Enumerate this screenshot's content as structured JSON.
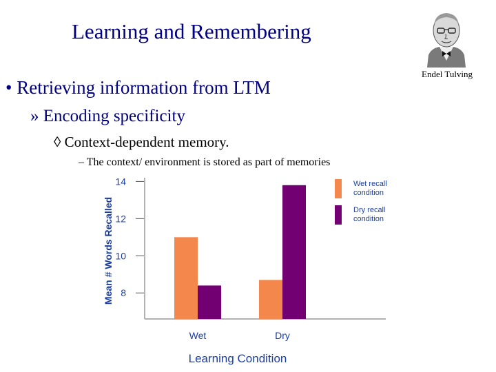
{
  "slide": {
    "title": "Learning and Remembering",
    "bullet1_marker": "•",
    "bullet1": "Retrieving information from LTM",
    "bullet2_marker": "»",
    "bullet2": "Encoding specificity",
    "bullet3_marker": "◊",
    "bullet3": "Context-dependent memory.",
    "bullet4_marker": "–",
    "bullet4": "The context/ environment is stored as part of memories",
    "portrait_caption": "Endel Tulving"
  },
  "chart_data": {
    "type": "bar",
    "categories": [
      "Wet",
      "Dry"
    ],
    "series": [
      {
        "name": "Wet recall condition",
        "values": [
          11.0,
          8.7
        ],
        "color": "#f4874b"
      },
      {
        "name": "Dry recall condition",
        "values": [
          8.4,
          13.8
        ],
        "color": "#730073"
      }
    ],
    "xlabel": "Learning Condition",
    "ylabel": "Mean # Words Recalled",
    "yticks": [
      8,
      10,
      12,
      14
    ],
    "ylim": [
      6.6,
      14.2
    ],
    "legend_position": "top-right",
    "label_color": "#1a3ea6"
  }
}
